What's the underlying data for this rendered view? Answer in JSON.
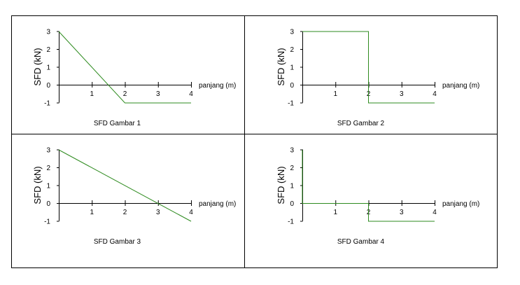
{
  "line_color": "#2e8b1f",
  "chart_data": [
    {
      "type": "line",
      "title": "SFD Gambar 1",
      "xlabel": "panjang (m)",
      "ylabel": "SFD (kN)",
      "xlim": [
        0,
        4
      ],
      "ylim": [
        -1,
        3
      ],
      "x_ticks": [
        "1",
        "2",
        "3",
        "4"
      ],
      "y_ticks": [
        "3",
        "2",
        "1",
        "0",
        "-1"
      ],
      "series": [
        {
          "x": [
            0,
            2,
            4
          ],
          "y": [
            3,
            -1,
            -1
          ]
        }
      ]
    },
    {
      "type": "line",
      "title": "SFD Gambar 2",
      "xlabel": "panjang (m)",
      "ylabel": "SFD (kN)",
      "xlim": [
        0,
        4
      ],
      "ylim": [
        -1,
        3
      ],
      "x_ticks": [
        "1",
        "2",
        "3",
        "4"
      ],
      "y_ticks": [
        "3",
        "2",
        "1",
        "0",
        "-1"
      ],
      "series": [
        {
          "x": [
            0,
            2,
            2,
            4
          ],
          "y": [
            3,
            3,
            -1,
            -1
          ]
        }
      ]
    },
    {
      "type": "line",
      "title": "SFD Gambar 3",
      "xlabel": "panjang (m)",
      "ylabel": "SFD (kN)",
      "xlim": [
        0,
        4
      ],
      "ylim": [
        -1,
        3
      ],
      "x_ticks": [
        "1",
        "2",
        "3",
        "4"
      ],
      "y_ticks": [
        "3",
        "2",
        "1",
        "0",
        "-1"
      ],
      "series": [
        {
          "x": [
            0,
            4
          ],
          "y": [
            3,
            -1
          ]
        }
      ]
    },
    {
      "type": "line",
      "title": "SFD Gambar 4",
      "xlabel": "panjang (m)",
      "ylabel": "SFD (kN)",
      "xlim": [
        0,
        4
      ],
      "ylim": [
        -1,
        3
      ],
      "x_ticks": [
        "1",
        "2",
        "3",
        "4"
      ],
      "y_ticks": [
        "3",
        "2",
        "1",
        "0",
        "-1"
      ],
      "series": [
        {
          "x": [
            0,
            0,
            2,
            2,
            4
          ],
          "y": [
            3,
            0,
            0,
            -1,
            -1
          ]
        }
      ]
    }
  ]
}
